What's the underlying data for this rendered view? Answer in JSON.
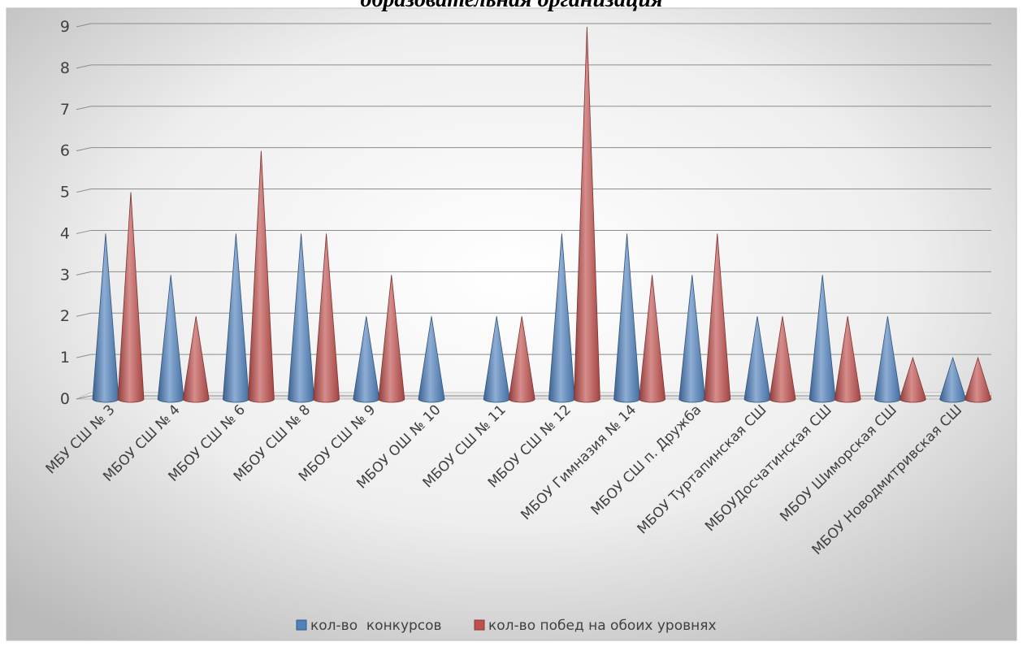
{
  "chart_data": {
    "type": "bar",
    "title": "образовательная организация",
    "categories": [
      "МБУ СШ № 3",
      "МБОУ СШ № 4",
      "МБОУ СШ № 6",
      "МБОУ СШ № 8",
      "МБОУ СШ № 9",
      "МБОУ ОШ № 10",
      "МБОУ СШ № 11",
      "МБОУ СШ № 12",
      "МБОУ Гимназия № 14",
      "МБОУ СШ п. Дружба",
      "МБОУ Туртапинская СШ",
      "МБОУДосчатинская СШ",
      "МБОУ Шиморская СШ",
      "МБОУ Новодмитривская СШ"
    ],
    "series": [
      {
        "name": "кол-во  конкурсов",
        "color": "#4f81bd",
        "values": [
          4,
          3,
          4,
          4,
          2,
          2,
          2,
          4,
          4,
          3,
          2,
          3,
          2,
          1
        ]
      },
      {
        "name": "кол-во побед на обоих уровнях",
        "color": "#c0504d",
        "values": [
          5,
          2,
          6,
          4,
          3,
          0,
          2,
          9,
          3,
          4,
          2,
          2,
          1,
          1
        ]
      }
    ],
    "ylim": [
      0,
      9
    ],
    "yticks": [
      0,
      1,
      2,
      3,
      4,
      5,
      6,
      7,
      8,
      9
    ],
    "grid": true,
    "legend": "bottom",
    "mark_shape": "cone"
  }
}
